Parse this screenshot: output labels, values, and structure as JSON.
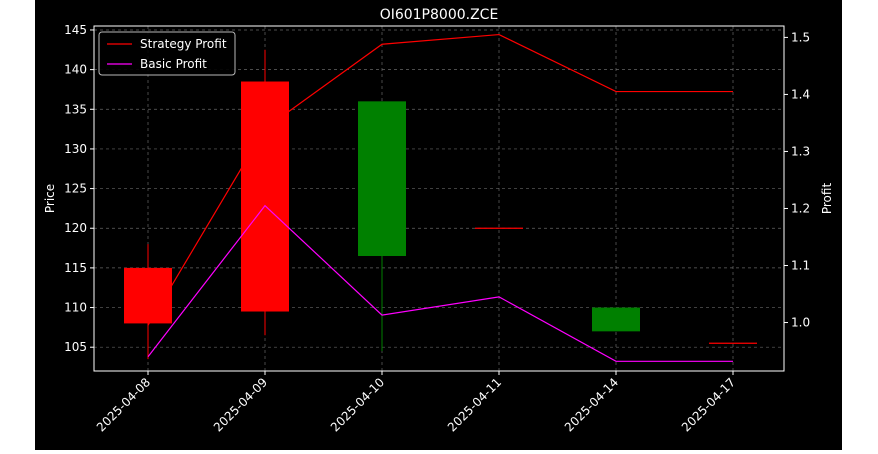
{
  "chart_data": {
    "type": "candlestick",
    "title": "OI601P8000.ZCE",
    "ylabel_left": "Price",
    "ylabel_right": "Profit",
    "categories": [
      "2025-04-08",
      "2025-04-09",
      "2025-04-10",
      "2025-04-11",
      "2025-04-14",
      "2025-04-17"
    ],
    "candles": [
      {
        "date": "2025-04-08",
        "open": 108.0,
        "high": 118.0,
        "low": 103.5,
        "close": 115.0
      },
      {
        "date": "2025-04-09",
        "open": 109.5,
        "high": 142.5,
        "low": 106.5,
        "close": 138.5
      },
      {
        "date": "2025-04-10",
        "open": 136.0,
        "high": 136.0,
        "low": 104.5,
        "close": 116.5
      },
      {
        "date": "2025-04-11",
        "open": 120.0,
        "high": 120.0,
        "low": 120.0,
        "close": 120.0
      },
      {
        "date": "2025-04-14",
        "open": 110.0,
        "high": 110.0,
        "low": 107.0,
        "close": 107.0
      },
      {
        "date": "2025-04-17",
        "open": 105.5,
        "high": 105.5,
        "low": 105.5,
        "close": 105.5
      }
    ],
    "series": [
      {
        "name": "Strategy Profit",
        "color": "#ff0000",
        "axis": "right",
        "values": [
          0.995,
          1.34,
          1.488,
          1.505,
          1.405,
          1.405
        ]
      },
      {
        "name": "Basic Profit",
        "color": "#ff00ff",
        "axis": "right",
        "values": [
          0.94,
          1.205,
          1.013,
          1.045,
          0.932,
          0.932
        ]
      }
    ],
    "ylim_left": [
      102,
      145.5
    ],
    "ylim_right": [
      0.915,
      1.52
    ],
    "yticks_left": [
      "105",
      "110",
      "115",
      "120",
      "125",
      "130",
      "135",
      "140",
      "145"
    ],
    "yticks_right": [
      "1.0",
      "1.1",
      "1.2",
      "1.3",
      "1.4",
      "1.5"
    ],
    "grid": true,
    "legend_position": "top-left",
    "colors": {
      "background": "#000000",
      "up": "#ff0000",
      "down": "#008000",
      "axis": "#ffffff",
      "grid": "#808080"
    }
  }
}
